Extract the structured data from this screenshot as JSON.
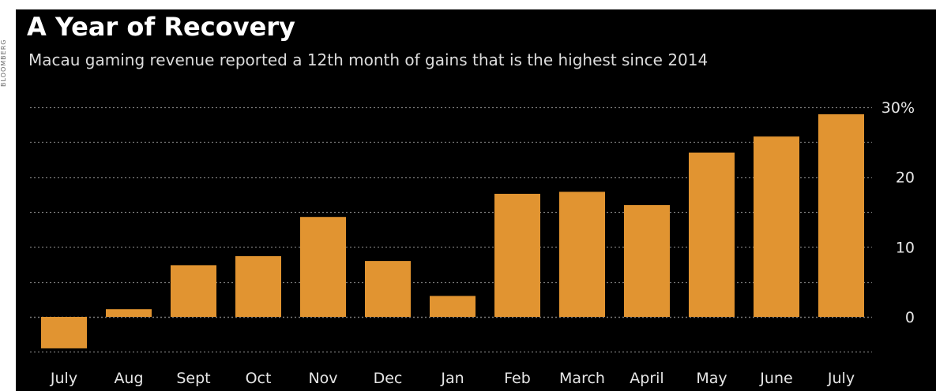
{
  "watermark": "BLOOMBERG",
  "chart_data": {
    "type": "bar",
    "title": "A Year of Recovery",
    "subtitle": "Macau gaming revenue reported a 12th month of gains that is the highest since 2014",
    "xlabel": "",
    "ylabel": "",
    "categories": [
      "July",
      "Aug",
      "Sept",
      "Oct",
      "Nov",
      "Dec",
      "Jan",
      "Feb",
      "March",
      "April",
      "May",
      "June",
      "July"
    ],
    "values": [
      -4.5,
      1.1,
      7.4,
      8.7,
      14.3,
      8.0,
      3.0,
      17.6,
      17.9,
      16.0,
      23.5,
      25.8,
      29.0
    ],
    "ylim": [
      -5,
      30
    ],
    "y_ticks": [
      0,
      10,
      20,
      30
    ],
    "y_tick_labels": [
      "0",
      "10",
      "20",
      "30%"
    ],
    "grid": true,
    "grid_style": "dotted",
    "y_axis_side": "right",
    "colors": {
      "background": "#000000",
      "bar": "#E19431",
      "grid": "#7a7a7a",
      "text": "#e6e6e6",
      "title": "#ffffff"
    }
  }
}
